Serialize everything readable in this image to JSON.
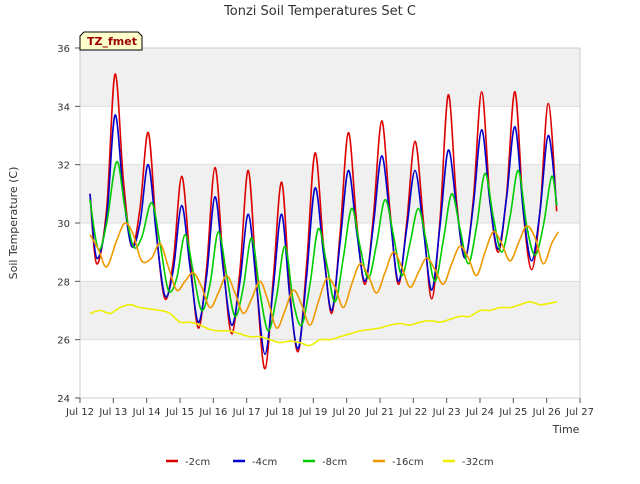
{
  "chart_data": {
    "type": "line",
    "title": "Tonzi Soil Temperatures Set C",
    "xlabel": "Time",
    "ylabel": "Soil Temperature (C)",
    "ylim": [
      24,
      36
    ],
    "xlim": [
      12,
      27
    ],
    "y_ticks": [
      24,
      26,
      28,
      30,
      32,
      34,
      36
    ],
    "x_ticks": [
      {
        "value": 12,
        "label": "Jul 12"
      },
      {
        "value": 13,
        "label": "Jul 13"
      },
      {
        "value": 14,
        "label": "Jul 14"
      },
      {
        "value": 15,
        "label": "Jul 15"
      },
      {
        "value": 16,
        "label": "Jul 16"
      },
      {
        "value": 17,
        "label": "Jul 17"
      },
      {
        "value": 18,
        "label": "Jul 18"
      },
      {
        "value": 19,
        "label": "Jul 19"
      },
      {
        "value": 20,
        "label": "Jul 20"
      },
      {
        "value": 21,
        "label": "Jul 21"
      },
      {
        "value": 22,
        "label": "Jul 22"
      },
      {
        "value": 23,
        "label": "Jul 23"
      },
      {
        "value": 24,
        "label": "Jul 24"
      },
      {
        "value": 25,
        "label": "Jul 25"
      },
      {
        "value": 26,
        "label": "Jul 26"
      },
      {
        "value": 27,
        "label": "Jul 27"
      }
    ],
    "background_bands": true,
    "grid": true,
    "legend_position": "bottom",
    "annotation": "TZ_fmet",
    "series": [
      {
        "name": "-2cm",
        "color": "#dd0000",
        "x": [
          12.3,
          12.5,
          12.8,
          13.05,
          13.3,
          13.55,
          13.8,
          14.05,
          14.3,
          14.55,
          14.8,
          15.05,
          15.3,
          15.55,
          15.8,
          16.05,
          16.3,
          16.55,
          16.8,
          17.05,
          17.3,
          17.55,
          17.8,
          18.05,
          18.3,
          18.55,
          18.8,
          19.05,
          19.3,
          19.55,
          19.8,
          20.05,
          20.3,
          20.55,
          20.8,
          21.05,
          21.3,
          21.55,
          21.8,
          22.05,
          22.3,
          22.55,
          22.8,
          23.05,
          23.3,
          23.55,
          23.8,
          24.05,
          24.3,
          24.55,
          24.8,
          25.05,
          25.3,
          25.55,
          25.8,
          26.05,
          26.3
        ],
        "y": [
          31.0,
          28.6,
          30.5,
          35.1,
          31.5,
          29.2,
          30.5,
          33.1,
          29.6,
          27.4,
          28.7,
          31.6,
          28.8,
          26.4,
          28.5,
          31.9,
          28.6,
          26.2,
          28.4,
          31.8,
          27.9,
          25.0,
          28.1,
          31.4,
          27.6,
          25.6,
          28.6,
          32.4,
          29.3,
          26.9,
          29.6,
          33.1,
          30.0,
          27.9,
          30.2,
          33.5,
          30.4,
          27.9,
          30.0,
          32.8,
          30.1,
          27.4,
          30.1,
          34.4,
          30.7,
          28.8,
          30.8,
          34.5,
          30.8,
          29.0,
          31.0,
          34.5,
          30.4,
          28.4,
          30.4,
          34.1,
          30.4
        ]
      },
      {
        "name": "-4cm",
        "color": "#0000cc",
        "x": [
          12.3,
          12.5,
          12.8,
          13.05,
          13.3,
          13.55,
          13.8,
          14.05,
          14.3,
          14.55,
          14.8,
          15.05,
          15.3,
          15.55,
          15.8,
          16.05,
          16.3,
          16.55,
          16.8,
          17.05,
          17.3,
          17.55,
          17.8,
          18.05,
          18.3,
          18.55,
          18.8,
          19.05,
          19.3,
          19.55,
          19.8,
          20.05,
          20.3,
          20.55,
          20.8,
          21.05,
          21.3,
          21.55,
          21.8,
          22.05,
          22.3,
          22.55,
          22.8,
          23.05,
          23.3,
          23.55,
          23.8,
          24.05,
          24.3,
          24.55,
          24.8,
          25.05,
          25.3,
          25.55,
          25.8,
          26.05,
          26.3
        ],
        "y": [
          31.0,
          28.8,
          30.2,
          33.7,
          31.0,
          29.2,
          30.0,
          32.0,
          29.5,
          27.5,
          28.4,
          30.6,
          28.5,
          26.6,
          28.2,
          30.9,
          28.4,
          26.5,
          28.0,
          30.3,
          27.8,
          25.5,
          27.8,
          30.3,
          27.4,
          25.7,
          28.2,
          31.2,
          29.0,
          27.0,
          29.3,
          31.8,
          29.7,
          28.0,
          29.9,
          32.3,
          30.2,
          28.0,
          29.8,
          31.8,
          29.8,
          27.7,
          29.9,
          32.5,
          30.5,
          28.8,
          30.6,
          33.2,
          30.7,
          29.1,
          30.9,
          33.3,
          30.4,
          28.7,
          30.4,
          33.0,
          30.6
        ]
      },
      {
        "name": "-8cm",
        "color": "#00cc00",
        "x": [
          12.3,
          12.55,
          12.8,
          13.1,
          13.35,
          13.6,
          13.85,
          14.15,
          14.4,
          14.65,
          14.9,
          15.15,
          15.4,
          15.65,
          15.9,
          16.15,
          16.4,
          16.65,
          16.9,
          17.15,
          17.4,
          17.65,
          17.9,
          18.15,
          18.4,
          18.65,
          18.9,
          19.15,
          19.4,
          19.65,
          19.9,
          20.15,
          20.4,
          20.65,
          20.9,
          21.15,
          21.4,
          21.65,
          21.9,
          22.15,
          22.4,
          22.65,
          22.9,
          23.15,
          23.4,
          23.65,
          23.9,
          24.15,
          24.4,
          24.65,
          24.9,
          25.15,
          25.4,
          25.65,
          25.9,
          26.15,
          26.3
        ],
        "y": [
          30.8,
          29.1,
          30.0,
          32.1,
          30.5,
          29.2,
          29.5,
          30.7,
          29.3,
          27.7,
          28.1,
          29.6,
          28.3,
          27.0,
          27.9,
          29.7,
          28.2,
          26.8,
          27.8,
          29.5,
          27.6,
          26.3,
          27.5,
          29.2,
          27.3,
          26.5,
          27.9,
          29.8,
          28.6,
          27.3,
          28.8,
          30.5,
          29.2,
          28.1,
          29.3,
          30.8,
          29.6,
          28.2,
          29.3,
          30.5,
          29.3,
          28.0,
          29.4,
          31.0,
          29.8,
          28.6,
          29.9,
          31.7,
          30.2,
          29.0,
          30.2,
          31.8,
          29.9,
          28.9,
          29.9,
          31.6,
          30.6
        ]
      },
      {
        "name": "-16cm",
        "color": "#ee9900",
        "x": [
          12.3,
          12.55,
          12.8,
          13.1,
          13.35,
          13.6,
          13.85,
          14.15,
          14.4,
          14.65,
          14.9,
          15.15,
          15.4,
          15.65,
          15.9,
          16.15,
          16.4,
          16.65,
          16.9,
          17.15,
          17.4,
          17.65,
          17.9,
          18.15,
          18.4,
          18.65,
          18.9,
          19.15,
          19.4,
          19.65,
          19.9,
          20.15,
          20.4,
          20.65,
          20.9,
          21.15,
          21.4,
          21.65,
          21.9,
          22.15,
          22.4,
          22.65,
          22.9,
          23.15,
          23.4,
          23.65,
          23.9,
          24.15,
          24.4,
          24.65,
          24.9,
          25.15,
          25.4,
          25.65,
          25.9,
          26.15,
          26.35
        ],
        "y": [
          29.6,
          29.1,
          28.5,
          29.4,
          30.0,
          29.6,
          28.7,
          28.8,
          29.3,
          28.5,
          27.7,
          28.0,
          28.3,
          27.8,
          27.1,
          27.6,
          28.2,
          27.6,
          26.9,
          27.4,
          28.0,
          27.3,
          26.4,
          27.0,
          27.7,
          27.2,
          26.5,
          27.3,
          28.1,
          27.8,
          27.1,
          27.9,
          28.6,
          28.2,
          27.6,
          28.3,
          29.0,
          28.5,
          27.8,
          28.3,
          28.8,
          28.4,
          27.9,
          28.6,
          29.2,
          28.8,
          28.2,
          29.0,
          29.7,
          29.3,
          28.7,
          29.3,
          29.9,
          29.5,
          28.6,
          29.3,
          29.7
        ]
      },
      {
        "name": "-32cm",
        "color": "#eeee00",
        "x": [
          12.3,
          12.6,
          12.9,
          13.2,
          13.5,
          13.8,
          14.1,
          14.4,
          14.7,
          15.0,
          15.3,
          15.6,
          15.9,
          16.2,
          16.5,
          16.8,
          17.1,
          17.4,
          17.7,
          18.0,
          18.3,
          18.6,
          18.9,
          19.2,
          19.5,
          19.8,
          20.1,
          20.4,
          20.7,
          21.0,
          21.3,
          21.6,
          21.9,
          22.2,
          22.5,
          22.8,
          23.1,
          23.4,
          23.7,
          24.0,
          24.3,
          24.6,
          24.9,
          25.2,
          25.5,
          25.8,
          26.1,
          26.3
        ],
        "y": [
          26.9,
          27.0,
          26.9,
          27.1,
          27.2,
          27.1,
          27.05,
          27.0,
          26.9,
          26.6,
          26.6,
          26.5,
          26.35,
          26.3,
          26.3,
          26.2,
          26.1,
          26.1,
          26.0,
          25.9,
          25.95,
          25.9,
          25.8,
          26.0,
          26.0,
          26.1,
          26.2,
          26.3,
          26.35,
          26.4,
          26.5,
          26.55,
          26.5,
          26.6,
          26.65,
          26.6,
          26.7,
          26.8,
          26.8,
          27.0,
          27.0,
          27.1,
          27.1,
          27.2,
          27.3,
          27.2,
          27.25,
          27.3
        ]
      }
    ]
  }
}
